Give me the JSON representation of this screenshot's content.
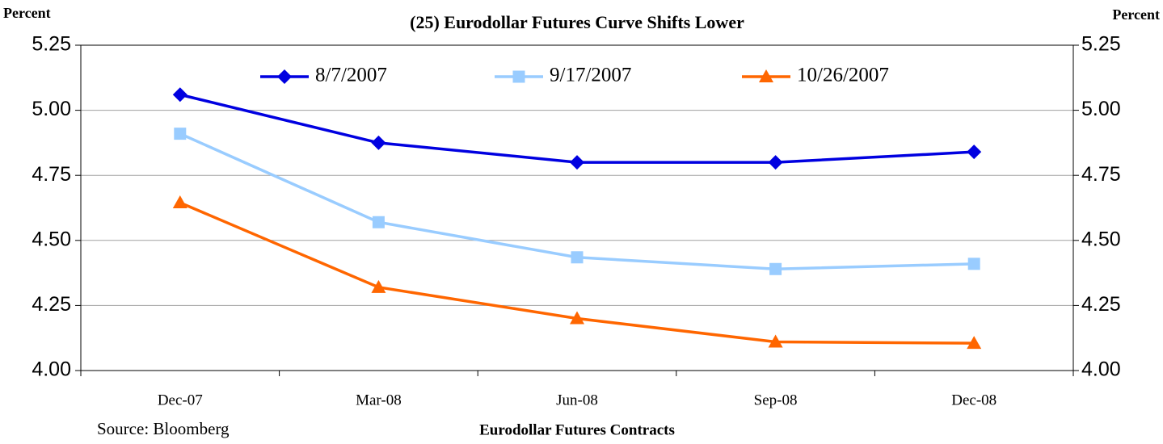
{
  "chart_data": {
    "type": "line",
    "title": "(25) Eurodollar Futures Curve Shifts Lower",
    "y_label": "Percent",
    "y2_label": "Percent",
    "x_label": "Eurodollar Futures Contracts",
    "source": "Source: Bloomberg",
    "categories": [
      "Dec-07",
      "Mar-08",
      "Jun-08",
      "Sep-08",
      "Dec-08"
    ],
    "series": [
      {
        "name": "8/7/2007",
        "color": "#0000e0",
        "marker": "diamond",
        "values": [
          5.06,
          4.875,
          4.8,
          4.8,
          4.84
        ]
      },
      {
        "name": "9/17/2007",
        "color": "#99ccff",
        "marker": "square",
        "values": [
          4.91,
          4.57,
          4.435,
          4.39,
          4.41
        ]
      },
      {
        "name": "10/26/2007",
        "color": "#ff6600",
        "marker": "triangle",
        "values": [
          4.645,
          4.32,
          4.2,
          4.11,
          4.105
        ]
      }
    ],
    "ylim": [
      4,
      5.25
    ],
    "yticks": [
      {
        "value": 4,
        "label": "4.00"
      },
      4.25,
      {
        "value": 4.5,
        "label": "4.50"
      },
      4.75,
      {
        "value": 5,
        "label": "5.00"
      },
      5.25
    ],
    "y2lim": [
      4,
      5.25
    ],
    "y2ticks": [
      {
        "value": 4,
        "label": "4.00"
      },
      4.25,
      {
        "value": 4.5,
        "label": "4.50"
      },
      4.75,
      {
        "value": 5,
        "label": "5.00"
      },
      5.25
    ],
    "grid": true,
    "legend": "top"
  }
}
